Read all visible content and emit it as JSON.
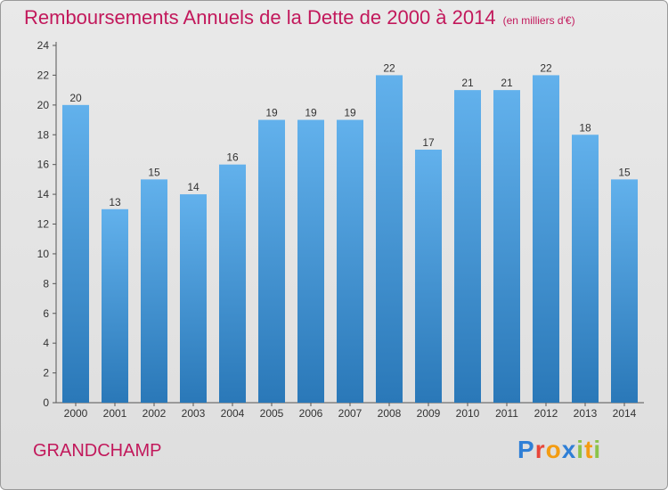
{
  "title": "Remboursements Annuels de la Dette de 2000 à 2014",
  "unit": "(en milliers d'€)",
  "commune": "GRANDCHAMP",
  "logo": "Proxiti",
  "colors": {
    "title": "#c2185b",
    "bar_top": "#62b1ec",
    "bar_bottom": "#2a78b8",
    "logo": [
      "#2f7fd6",
      "#e8463a",
      "#f39c12",
      "#2f7fd6",
      "#8bc34a",
      "#f39c12",
      "#8bc34a"
    ]
  },
  "chart_data": {
    "type": "bar",
    "categories": [
      "2000",
      "2001",
      "2002",
      "2003",
      "2004",
      "2005",
      "2006",
      "2007",
      "2008",
      "2009",
      "2010",
      "2011",
      "2012",
      "2013",
      "2014"
    ],
    "values": [
      20,
      13,
      15,
      14,
      16,
      19,
      19,
      19,
      22,
      17,
      21,
      21,
      22,
      18,
      15
    ],
    "ylim": [
      0,
      24
    ],
    "yticks": [
      0,
      2,
      4,
      6,
      8,
      10,
      12,
      14,
      16,
      18,
      20,
      22,
      24
    ],
    "grid": false
  }
}
